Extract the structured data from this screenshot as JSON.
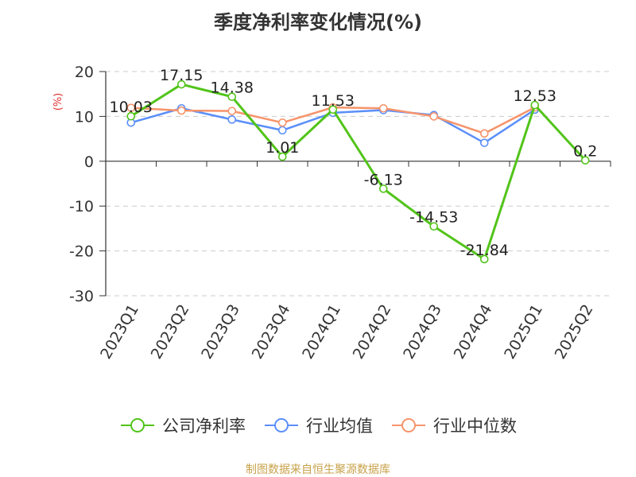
{
  "chart_data": {
    "type": "line",
    "title": "季度净利率变化情况(%)",
    "ylabel": "(%)",
    "xlabel": "",
    "categories": [
      "2023Q1",
      "2023Q2",
      "2023Q3",
      "2023Q4",
      "2024Q1",
      "2024Q2",
      "2024Q3",
      "2024Q4",
      "2025Q1",
      "2025Q2"
    ],
    "ylim": [
      -30,
      20
    ],
    "yticks": [
      "20",
      "10",
      "0",
      "-10",
      "-20",
      "-30"
    ],
    "grid": true,
    "legend_position": "bottom",
    "series": [
      {
        "name": "公司净利率",
        "color": "#52c41a",
        "values": [
          10.03,
          17.15,
          14.38,
          1.01,
          11.53,
          -6.13,
          -14.53,
          -21.84,
          12.53,
          0.2
        ],
        "labels": [
          "10.03",
          "17.15",
          "14.38",
          "1.01",
          "11.53",
          "-6.13",
          "-14.53",
          "-21.84",
          "12.53",
          "0.2"
        ]
      },
      {
        "name": "行业均值",
        "color": "#5b8ff9",
        "values": [
          8.6,
          11.8,
          9.3,
          6.9,
          10.8,
          11.4,
          10.3,
          4.1,
          11.5,
          null
        ]
      },
      {
        "name": "行业中位数",
        "color": "#f6946b",
        "values": [
          11.9,
          11.3,
          11.2,
          8.6,
          12.0,
          11.8,
          10.0,
          6.2,
          12.0,
          null
        ]
      }
    ]
  },
  "source": {
    "text": "制图数据来自恒生聚源数据库",
    "color": "#c8a24a"
  },
  "axis_label_color": "#e03131"
}
